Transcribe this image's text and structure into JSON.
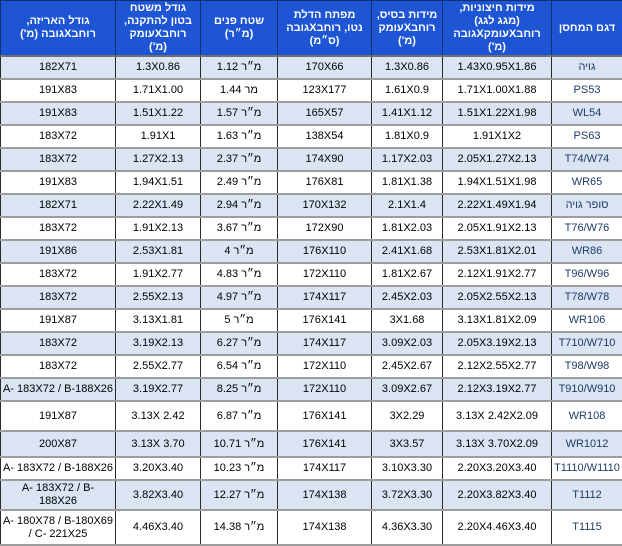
{
  "colors": {
    "header_bg": "#1D55D4",
    "header_text": "#FFFFFF",
    "row_alt_bg": "#DAE4F3",
    "row_bg": "#FFFFFF",
    "cell_text": "#000000",
    "model_text": "#1F3B66",
    "h_border": "#9D9D9D",
    "v_border": "#2A2A2A"
  },
  "table": {
    "columns": [
      {
        "field": "model",
        "label": "דגם המחסן"
      },
      {
        "field": "external_dims",
        "label": "מידות חיצוניות,\n(מגג לגג)\nרוחבXעומקXגובה\n(מ')"
      },
      {
        "field": "base_dims",
        "label": "מידות בסיס,\nרוחבXעומק\n(מ')"
      },
      {
        "field": "door_opening",
        "label": "מפתח הדלת\nנטו, רוחבXגובה\n(ס״מ)"
      },
      {
        "field": "interior_area",
        "label": "שטח פנים\n(מ״ר)"
      },
      {
        "field": "concrete_pad",
        "label": "גודל משטח\nבטון להתקנה,\nרוחבXעומק\n(מ')"
      },
      {
        "field": "package_size",
        "label": "גודל האריזה,\nרוחבXגובה (מ')"
      }
    ],
    "rows": [
      {
        "model": "גויה",
        "external_dims": "1.43X0.95X1.86",
        "base_dims": "1.3X0.86",
        "door_opening": "170X66",
        "interior_area": "1.12 מ״ר",
        "concrete_pad": "1.3X0.86",
        "package_size": "182X71"
      },
      {
        "model": "PS53",
        "external_dims": "1.71X1.00X1.88",
        "base_dims": "1.61X0.9",
        "door_opening": "123X177",
        "interior_area": "1.44 מר",
        "concrete_pad": "1.71X1.00",
        "package_size": "191X83"
      },
      {
        "model": "WL54",
        "external_dims": "1.51X1.22X1.98",
        "base_dims": "1.41X1.12",
        "door_opening": "165X57",
        "interior_area": "1.57 מ״ר",
        "concrete_pad": "1.51X1.22",
        "package_size": "191X83"
      },
      {
        "model": "PS63",
        "external_dims": "1.91X1X2",
        "base_dims": "1.81X0.9",
        "door_opening": "138X54",
        "interior_area": "1.63 מ״ר",
        "concrete_pad": "1.91X1",
        "package_size": "183X72"
      },
      {
        "model": "T74/W74",
        "external_dims": "2.05X1.27X2.13",
        "base_dims": "1.17X2.03",
        "door_opening": "174X90",
        "interior_area": "2.37 מ״ר",
        "concrete_pad": "1.27X2.13",
        "package_size": "183X72"
      },
      {
        "model": "WR65",
        "external_dims": "1.94X1.51X1.98",
        "base_dims": "1.81X1.38",
        "door_opening": "176X81",
        "interior_area": "2.49 מ״ר",
        "concrete_pad": "1.94X1.51",
        "package_size": "191X83"
      },
      {
        "model": "סופר גויה",
        "external_dims": "2.22X1.49X1.94",
        "base_dims": "2.1X1.4",
        "door_opening": "170X132",
        "interior_area": "2.94 מ״ר",
        "concrete_pad": "2.22X1.49",
        "package_size": "182X71"
      },
      {
        "model": "T76/W76",
        "external_dims": "2.05X1.91X2.13",
        "base_dims": "1.81X2.03",
        "door_opening": "172X90",
        "interior_area": "3.67 מ״ר",
        "concrete_pad": "1.91X2.13",
        "package_size": "183X72"
      },
      {
        "model": "WR86",
        "external_dims": "2.53X1.81X2.01",
        "base_dims": "2.41X1.68",
        "door_opening": "176X110",
        "interior_area": "4 מ״ר",
        "concrete_pad": "2.53X1.81",
        "package_size": "191X86"
      },
      {
        "model": "T96/W96",
        "external_dims": "2.12X1.91X2.77",
        "base_dims": "1.81X2.67",
        "door_opening": "172X110",
        "interior_area": "4.83 מ״ר",
        "concrete_pad": "1.91X2.77",
        "package_size": "183X72"
      },
      {
        "model": "T78/W78",
        "external_dims": "2.05X2.55X2.13",
        "base_dims": "2.45X2.03",
        "door_opening": "174X117",
        "interior_area": "4.97 מ״ר",
        "concrete_pad": "2.55X2.13",
        "package_size": "183X72"
      },
      {
        "model": "WR106",
        "external_dims": "3.13X1.81X2.09",
        "base_dims": "3X1.68",
        "door_opening": "176X141",
        "interior_area": "5 מ״ר",
        "concrete_pad": "3.13X1.81",
        "package_size": "191X87"
      },
      {
        "model": "T710/W710",
        "external_dims": "2.05X3.19X2.13",
        "base_dims": "3.09X2.03",
        "door_opening": "174X117",
        "interior_area": "6.27 מ״ר",
        "concrete_pad": "3.19X2.13",
        "package_size": "183X72"
      },
      {
        "model": "T98/W98",
        "external_dims": "2.12X2.55X2.77",
        "base_dims": "2.45X2.67",
        "door_opening": "172X110",
        "interior_area": "6.54 מ״ר",
        "concrete_pad": "2.55X2.77",
        "package_size": "183X72"
      },
      {
        "model": "T910/W910",
        "external_dims": "2.12X3.19X2.77",
        "base_dims": "3.09X2.67",
        "door_opening": "172X110",
        "interior_area": "8.25 מ״ר",
        "concrete_pad": "3.19X2.77",
        "package_size": "A- 183X72 / B-188X26"
      },
      {
        "model": "WR108",
        "external_dims": "3.13X 2.42X2.09",
        "base_dims": "3X2.29",
        "door_opening": "176X141",
        "interior_area": "6.87 מ״ר",
        "concrete_pad": "3.13X 2.42",
        "package_size": "191X87"
      },
      {
        "model": "WR1012",
        "external_dims": "3.13X 3.70X2.09",
        "base_dims": "3X3.57",
        "door_opening": "176X141",
        "interior_area": "10.71 מ״ר",
        "concrete_pad": "3.13X 3.70",
        "package_size": "200X87"
      },
      {
        "model": "T1110/W1110",
        "external_dims": "2.20X3.20X3.40",
        "base_dims": "3.10X3.30",
        "door_opening": "174X117",
        "interior_area": "10.23 מ״ר",
        "concrete_pad": "3.20X3.40",
        "package_size": "A- 183X72 / B-188X26"
      },
      {
        "model": "T1112",
        "external_dims": "2.20X3.82X3.40",
        "base_dims": "3.72X3.30",
        "door_opening": "174X138",
        "interior_area": "12.27 מ״ר",
        "concrete_pad": "3.82X3.40",
        "package_size": "A- 183X72 / B- 188X26"
      },
      {
        "model": "T1115",
        "external_dims": "2.20X4.46X3.40",
        "base_dims": "4.36X3.30",
        "door_opening": "174X138",
        "interior_area": "14.38 מ״ר",
        "concrete_pad": "4.46X3.40",
        "package_size": "A- 180X78 / B-180X69 / C- 221X25"
      }
    ]
  }
}
